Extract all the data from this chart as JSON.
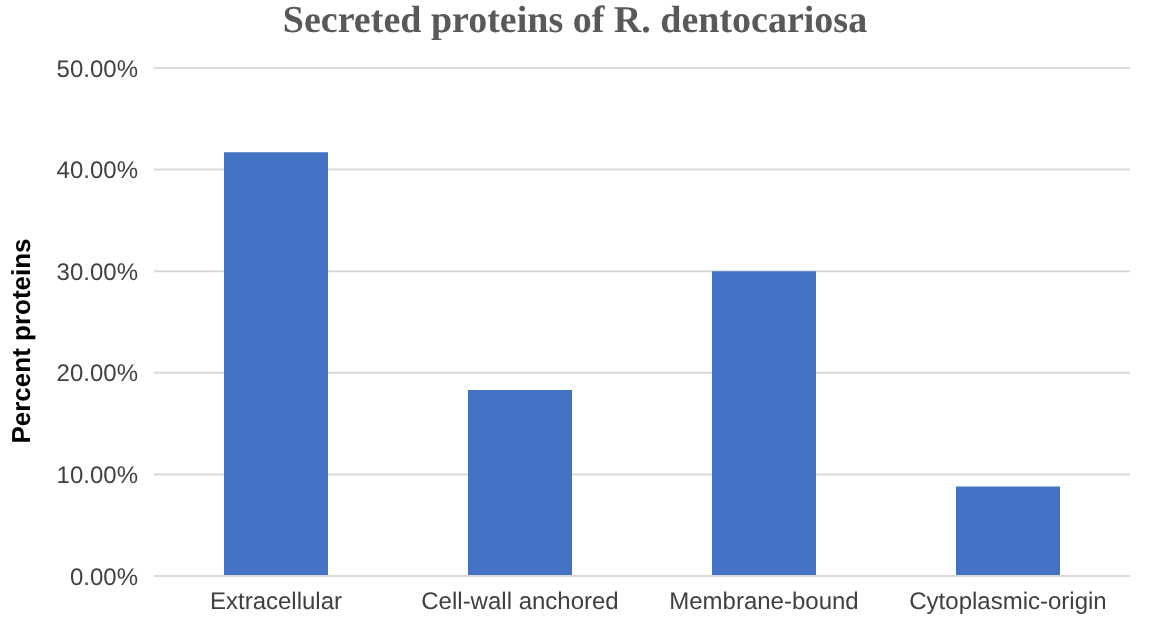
{
  "chart_data": {
    "type": "bar",
    "title": "Secreted proteins of R. dentocariosa",
    "ylabel": "Percent proteins",
    "categories": [
      "Extracellular",
      "Cell-wall anchored",
      "Membrane-bound",
      "Cytoplasmic-origin"
    ],
    "values": [
      41.7,
      18.3,
      30.0,
      8.8
    ],
    "color": "#4472c4",
    "ylim": [
      0,
      50
    ],
    "yticks": [
      {
        "value": 0,
        "label": "0.00%"
      },
      {
        "value": 10,
        "label": "10.00%"
      },
      {
        "value": 20,
        "label": "20.00%"
      },
      {
        "value": 30,
        "label": "30.00%"
      },
      {
        "value": 40,
        "label": "40.00%"
      },
      {
        "value": 50,
        "label": "50.00%"
      }
    ],
    "grid": "y"
  }
}
